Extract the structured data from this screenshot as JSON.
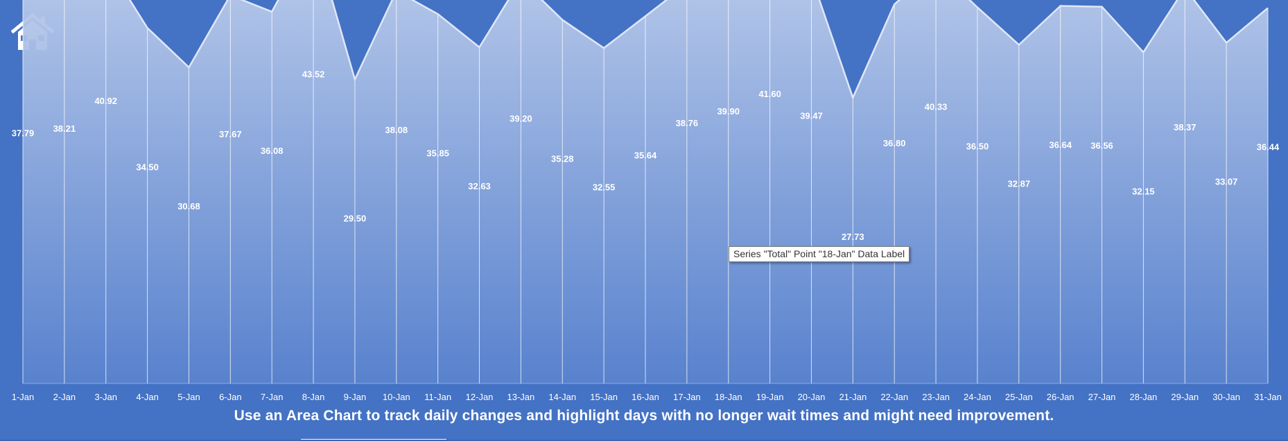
{
  "icons": {
    "home": "home-icon"
  },
  "caption": "Use an Area Chart to track daily changes and highlight days with no longer wait times and might need improvement.",
  "tooltip": "Series \"Total\" Point \"18-Jan\" Data Label",
  "colors": {
    "background": "#4472C4",
    "area_top": "#c5d3ee",
    "area_bottom": "#5b84cf",
    "line": "#dfe7f7",
    "text": "#ffffff"
  },
  "chart_data": {
    "type": "area",
    "series": [
      {
        "name": "Total",
        "values": [
          37.79,
          38.21,
          40.92,
          34.5,
          30.68,
          37.67,
          36.08,
          43.52,
          29.5,
          38.08,
          35.85,
          32.63,
          39.2,
          35.28,
          32.55,
          35.64,
          38.76,
          39.9,
          41.6,
          39.47,
          27.73,
          36.8,
          40.33,
          36.5,
          32.87,
          36.64,
          36.56,
          32.15,
          38.37,
          33.07,
          36.44
        ]
      }
    ],
    "categories": [
      "1-Jan",
      "2-Jan",
      "3-Jan",
      "4-Jan",
      "5-Jan",
      "6-Jan",
      "7-Jan",
      "8-Jan",
      "9-Jan",
      "10-Jan",
      "11-Jan",
      "12-Jan",
      "13-Jan",
      "14-Jan",
      "15-Jan",
      "16-Jan",
      "17-Jan",
      "18-Jan",
      "19-Jan",
      "20-Jan",
      "21-Jan",
      "22-Jan",
      "23-Jan",
      "24-Jan",
      "25-Jan",
      "26-Jan",
      "27-Jan",
      "28-Jan",
      "29-Jan",
      "30-Jan",
      "31-Jan"
    ],
    "data_label_format": "0.00",
    "ylim": [
      0,
      45
    ],
    "grid": false,
    "legend": "none",
    "drop_lines": true
  }
}
